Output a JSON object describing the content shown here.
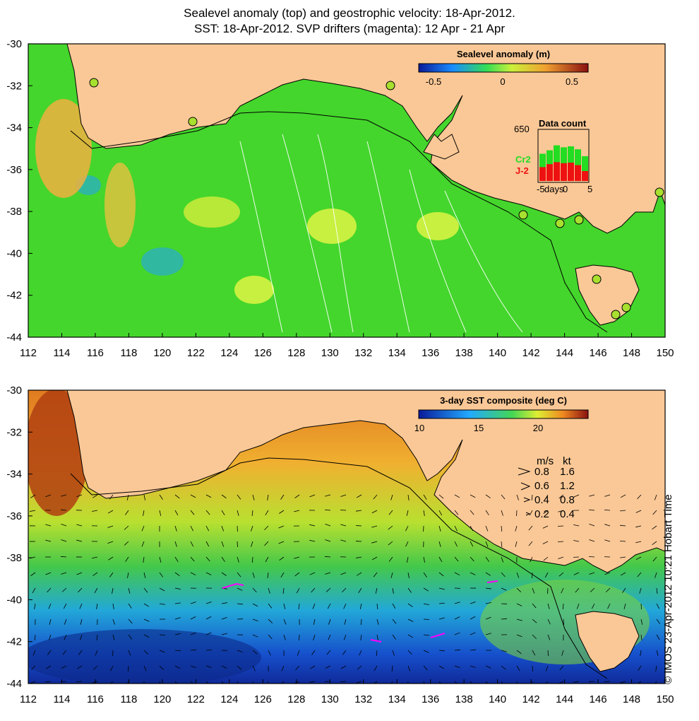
{
  "title_line1": "Sealevel anomaly (top) and geostrophic velocity: 18-Apr-2012.",
  "title_line2": "SST: 18-Apr-2012. SVP drifters (magenta): 12 Apr - 21 Apr",
  "credit": "© IMOS 23-Apr-2012 10:21 Hobart Time",
  "axes": {
    "x_ticks": [
      "112",
      "114",
      "116",
      "118",
      "120",
      "122",
      "124",
      "126",
      "128",
      "130",
      "132",
      "134",
      "136",
      "138",
      "140",
      "142",
      "144",
      "146",
      "148",
      "150"
    ],
    "y_ticks": [
      "-30",
      "-32",
      "-34",
      "-36",
      "-38",
      "-40",
      "-42",
      "-44"
    ]
  },
  "top_panel": {
    "colorbar_title": "Sealevel anomaly (m)",
    "colorbar_ticks": [
      "-0.5",
      "0",
      "0.5"
    ],
    "data_count": {
      "title": "Data count",
      "max_label": "650",
      "series": [
        "Cr2",
        "J-2"
      ],
      "xlabel": "days",
      "x_ticks": [
        "-5",
        "0",
        "5"
      ],
      "colors": {
        "Cr2": "#22dd22",
        "J-2": "#ee1111"
      }
    }
  },
  "bottom_panel": {
    "colorbar_title": "3-day SST composite (deg C)",
    "colorbar_ticks": [
      "10",
      "15",
      "20"
    ],
    "velocity_legend": {
      "header_ms": "m/s",
      "header_kt": "kt",
      "rows": [
        {
          "ms": "0.8",
          "kt": "1.6"
        },
        {
          "ms": "0.6",
          "kt": "1.2"
        },
        {
          "ms": "0.4",
          "kt": "0.8"
        },
        {
          "ms": "0.2",
          "kt": "0.4"
        }
      ]
    }
  },
  "colors": {
    "land": "#fac896",
    "ocean_sla": "#44d62c",
    "drifter": "#ff00ff"
  }
}
